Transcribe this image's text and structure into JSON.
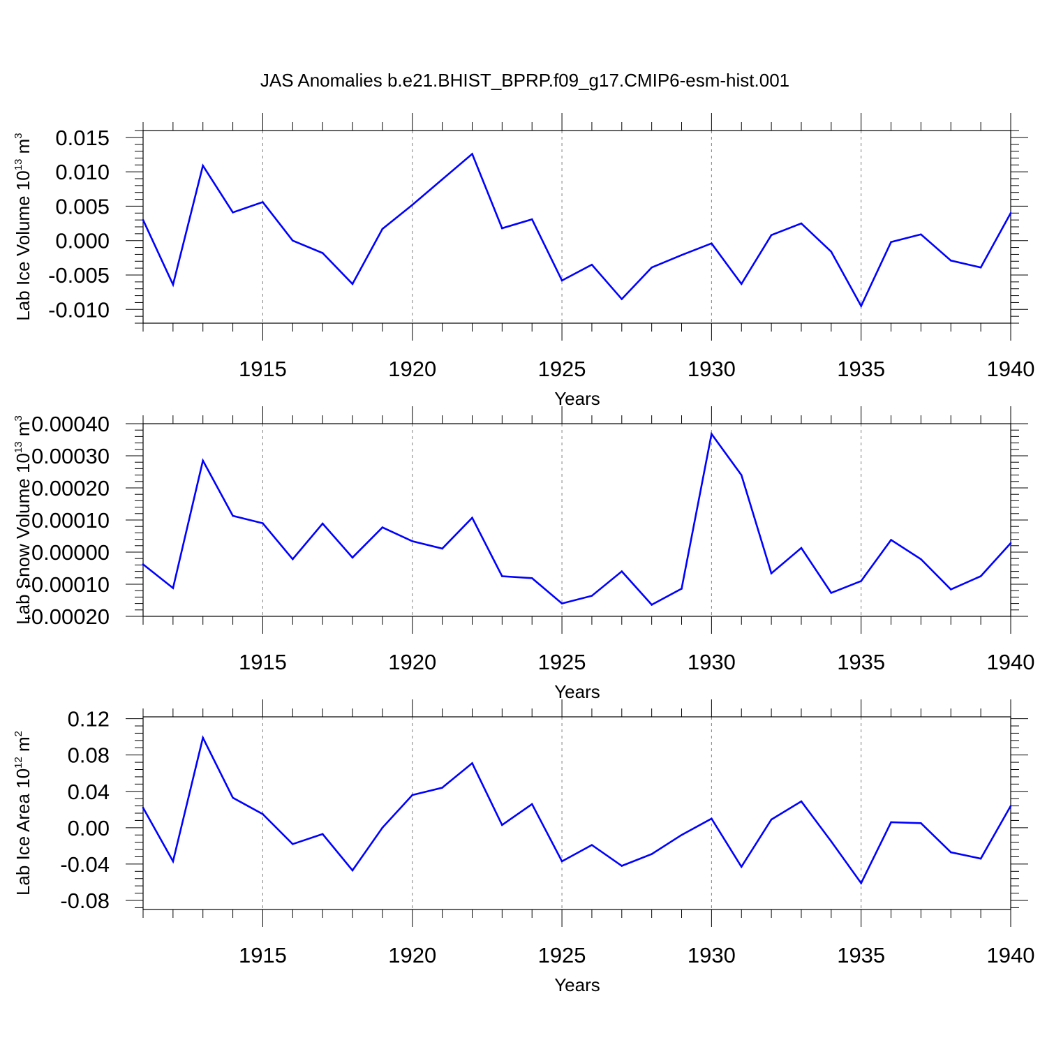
{
  "title": "JAS Anomalies b.e21.BHIST_BPRP.f09_g17.CMIP6-esm-hist.001",
  "colors": {
    "series": "#0000ff",
    "axis": "#000000",
    "grid": "#808080"
  },
  "chart_data": [
    {
      "type": "line",
      "ylabel_main": "Lab Ice Volume 10",
      "ylabel_exp": "13",
      "ylabel_unit": " m",
      "ylabel_unit_exp": "3",
      "xlabel": "Years",
      "xlim": [
        1911,
        1940
      ],
      "xticks": [
        1915,
        1920,
        1925,
        1930,
        1935,
        1940
      ],
      "ylim": [
        -0.012,
        0.016
      ],
      "yticks": [
        -0.01,
        -0.005,
        0.0,
        0.005,
        0.01,
        0.015
      ],
      "ytick_labels": [
        "-0.010",
        "-0.005",
        "0.000",
        "0.005",
        "0.010",
        "0.015"
      ],
      "grid": "vertical dashed at major x ticks",
      "x": [
        1911,
        1912,
        1913,
        1914,
        1915,
        1916,
        1917,
        1918,
        1919,
        1920,
        1921,
        1922,
        1923,
        1924,
        1925,
        1926,
        1927,
        1928,
        1929,
        1930,
        1931,
        1932,
        1933,
        1934,
        1935,
        1936,
        1937,
        1938,
        1939,
        1940
      ],
      "values": [
        0.003,
        -0.0064,
        0.0109,
        0.0041,
        0.0056,
        0.0,
        -0.0018,
        -0.0063,
        0.0017,
        0.0052,
        0.0089,
        0.0126,
        0.0018,
        0.0031,
        -0.0058,
        -0.0035,
        -0.0085,
        -0.0039,
        -0.0021,
        -0.0004,
        -0.0063,
        0.0008,
        0.0025,
        -0.0016,
        -0.0095,
        -0.0002,
        0.0009,
        -0.0029,
        -0.0039,
        0.004
      ]
    },
    {
      "type": "line",
      "ylabel_main": "Lab Snow Volume 10",
      "ylabel_exp": "13",
      "ylabel_unit": " m",
      "ylabel_unit_exp": "3",
      "xlabel": "Years",
      "xlim": [
        1911,
        1940
      ],
      "xticks": [
        1915,
        1920,
        1925,
        1930,
        1935,
        1940
      ],
      "ylim": [
        -0.0002,
        0.0004
      ],
      "yticks": [
        -0.0002,
        -0.0001,
        0.0,
        0.0001,
        0.0002,
        0.0003,
        0.0004
      ],
      "ytick_labels": [
        "-0.00020",
        "-0.00010",
        "0.00000",
        "0.00010",
        "0.00020",
        "0.00030",
        "0.00040"
      ],
      "grid": "vertical dashed at major x ticks",
      "x": [
        1911,
        1912,
        1913,
        1914,
        1915,
        1916,
        1917,
        1918,
        1919,
        1920,
        1921,
        1922,
        1923,
        1924,
        1925,
        1926,
        1927,
        1928,
        1929,
        1930,
        1931,
        1932,
        1933,
        1934,
        1935,
        1936,
        1937,
        1938,
        1939,
        1940
      ],
      "values": [
        -3.8e-05,
        -0.000112,
        0.000285,
        0.000113,
        9e-05,
        -2.2e-05,
        8.9e-05,
        -1.7e-05,
        7.7e-05,
        3.4e-05,
        1.1e-05,
        0.000107,
        -7.5e-05,
        -8.1e-05,
        -0.00016,
        -0.000136,
        -6e-05,
        -0.000164,
        -0.000114,
        0.000368,
        0.00024,
        -6.6e-05,
        1.3e-05,
        -0.000127,
        -9e-05,
        3.8e-05,
        -2.2e-05,
        -0.000116,
        -7.5e-05,
        2.8e-05
      ]
    },
    {
      "type": "line",
      "ylabel_main": "Lab Ice Area 10",
      "ylabel_exp": "12",
      "ylabel_unit": " m",
      "ylabel_unit_exp": "2",
      "xlabel": "Years",
      "xlim": [
        1911,
        1940
      ],
      "xticks": [
        1915,
        1920,
        1925,
        1930,
        1935,
        1940
      ],
      "ylim": [
        -0.09,
        0.122
      ],
      "yticks": [
        -0.08,
        -0.04,
        0.0,
        0.04,
        0.08,
        0.12
      ],
      "ytick_labels": [
        "-0.08",
        "-0.04",
        "0.00",
        "0.04",
        "0.08",
        "0.12"
      ],
      "grid": "vertical dashed at major x ticks",
      "x": [
        1911,
        1912,
        1913,
        1914,
        1915,
        1916,
        1917,
        1918,
        1919,
        1920,
        1921,
        1922,
        1923,
        1924,
        1925,
        1926,
        1927,
        1928,
        1929,
        1930,
        1931,
        1932,
        1933,
        1934,
        1935,
        1936,
        1937,
        1938,
        1939,
        1940
      ],
      "values": [
        0.022,
        -0.037,
        0.099,
        0.033,
        0.015,
        -0.018,
        -0.007,
        -0.047,
        0.0,
        0.036,
        0.044,
        0.071,
        0.003,
        0.026,
        -0.037,
        -0.019,
        -0.042,
        -0.029,
        -0.008,
        0.01,
        -0.043,
        0.009,
        0.029,
        -0.015,
        -0.061,
        0.006,
        0.005,
        -0.027,
        -0.034,
        0.024
      ]
    }
  ]
}
